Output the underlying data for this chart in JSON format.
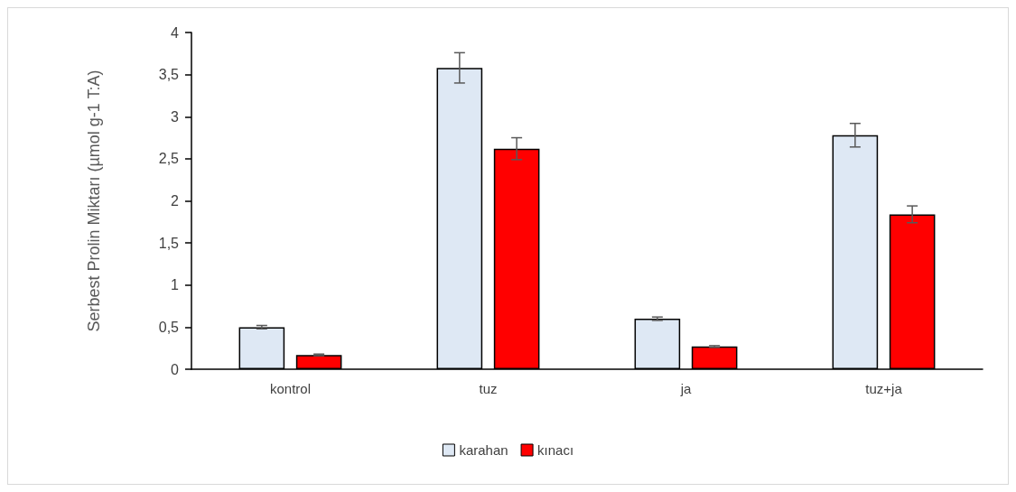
{
  "chart_data": {
    "type": "bar",
    "ylabel": "Serbest Prolin Miktarı (µmol g-1 T:A)",
    "categories": [
      "kontrol",
      "tuz",
      "ja",
      "tuz+ja"
    ],
    "series": [
      {
        "name": "karahan",
        "color": "#dee8f4",
        "values": [
          0.5,
          3.58,
          0.6,
          2.78
        ],
        "errors": [
          0.02,
          0.18,
          0.02,
          0.14
        ]
      },
      {
        "name": "kınacı",
        "color": "#ff0000",
        "values": [
          0.17,
          2.62,
          0.27,
          1.84
        ],
        "errors": [
          0.01,
          0.13,
          0.01,
          0.1
        ]
      }
    ],
    "ylim": [
      0,
      4
    ],
    "yticks": [
      0,
      {
        "value": 0.5,
        "label": "0,5"
      },
      1,
      {
        "value": 1.5,
        "label": "1,5"
      },
      2,
      {
        "value": 2.5,
        "label": "2,5"
      },
      3,
      {
        "value": 3.5,
        "label": "3,5"
      },
      4
    ],
    "grid": false,
    "legend": "bottom"
  }
}
